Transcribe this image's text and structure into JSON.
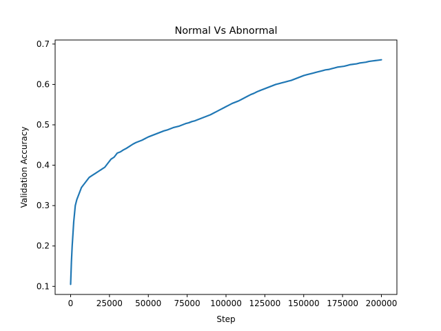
{
  "chart_data": {
    "type": "line",
    "title": "Normal Vs Abnormal",
    "xlabel": "Step",
    "ylabel": "Validation Accuracy",
    "xlim": [
      -9975,
      209975
    ],
    "ylim": [
      0.08,
      0.71
    ],
    "x_ticks": [
      0,
      25000,
      50000,
      75000,
      100000,
      125000,
      150000,
      175000,
      200000
    ],
    "x_tick_labels": [
      "0",
      "25000",
      "50000",
      "75000",
      "100000",
      "125000",
      "150000",
      "175000",
      "200000"
    ],
    "y_ticks": [
      0.1,
      0.2,
      0.3,
      0.4,
      0.5,
      0.6,
      0.7
    ],
    "y_tick_labels": [
      "0.1",
      "0.2",
      "0.3",
      "0.4",
      "0.5",
      "0.6",
      "0.7"
    ],
    "grid": false,
    "legend": "none",
    "series": [
      {
        "color": "#1f77b4",
        "x": [
          0,
          500,
          1000,
          1500,
          2000,
          2500,
          3000,
          4000,
          5000,
          6000,
          7000,
          8000,
          10000,
          12000,
          14000,
          16000,
          18000,
          20000,
          22000,
          24000,
          26000,
          28000,
          30000,
          32000,
          34000,
          36000,
          38000,
          40000,
          42000,
          44000,
          46000,
          48000,
          50000,
          52000,
          54000,
          56000,
          58000,
          60000,
          62000,
          64000,
          66000,
          68000,
          70000,
          72000,
          74000,
          76000,
          78000,
          80000,
          82000,
          84000,
          86000,
          88000,
          90000,
          92000,
          94000,
          96000,
          98000,
          100000,
          102000,
          104000,
          106000,
          108000,
          110000,
          112000,
          114000,
          116000,
          118000,
          120000,
          122000,
          124000,
          126000,
          128000,
          130000,
          132000,
          134000,
          136000,
          138000,
          140000,
          142000,
          144000,
          146000,
          148000,
          150000,
          152000,
          154000,
          156000,
          158000,
          160000,
          162000,
          164000,
          166000,
          168000,
          170000,
          172000,
          174000,
          176000,
          178000,
          180000,
          182000,
          184000,
          186000,
          188000,
          190000,
          192000,
          194000,
          196000,
          198000,
          200000
        ],
        "y": [
          0.105,
          0.16,
          0.2,
          0.23,
          0.26,
          0.28,
          0.3,
          0.315,
          0.325,
          0.335,
          0.345,
          0.35,
          0.36,
          0.37,
          0.375,
          0.38,
          0.385,
          0.39,
          0.395,
          0.405,
          0.415,
          0.42,
          0.43,
          0.433,
          0.438,
          0.442,
          0.447,
          0.452,
          0.456,
          0.459,
          0.462,
          0.466,
          0.47,
          0.473,
          0.476,
          0.479,
          0.482,
          0.485,
          0.487,
          0.49,
          0.493,
          0.495,
          0.497,
          0.5,
          0.503,
          0.505,
          0.508,
          0.51,
          0.513,
          0.516,
          0.519,
          0.522,
          0.525,
          0.529,
          0.533,
          0.537,
          0.541,
          0.545,
          0.549,
          0.553,
          0.556,
          0.559,
          0.563,
          0.567,
          0.571,
          0.575,
          0.578,
          0.582,
          0.585,
          0.588,
          0.591,
          0.594,
          0.597,
          0.6,
          0.602,
          0.604,
          0.606,
          0.608,
          0.61,
          0.613,
          0.616,
          0.619,
          0.622,
          0.624,
          0.626,
          0.628,
          0.63,
          0.632,
          0.634,
          0.636,
          0.637,
          0.639,
          0.641,
          0.643,
          0.644,
          0.645,
          0.647,
          0.649,
          0.65,
          0.651,
          0.653,
          0.654,
          0.655,
          0.657,
          0.658,
          0.659,
          0.66,
          0.661
        ]
      }
    ]
  }
}
